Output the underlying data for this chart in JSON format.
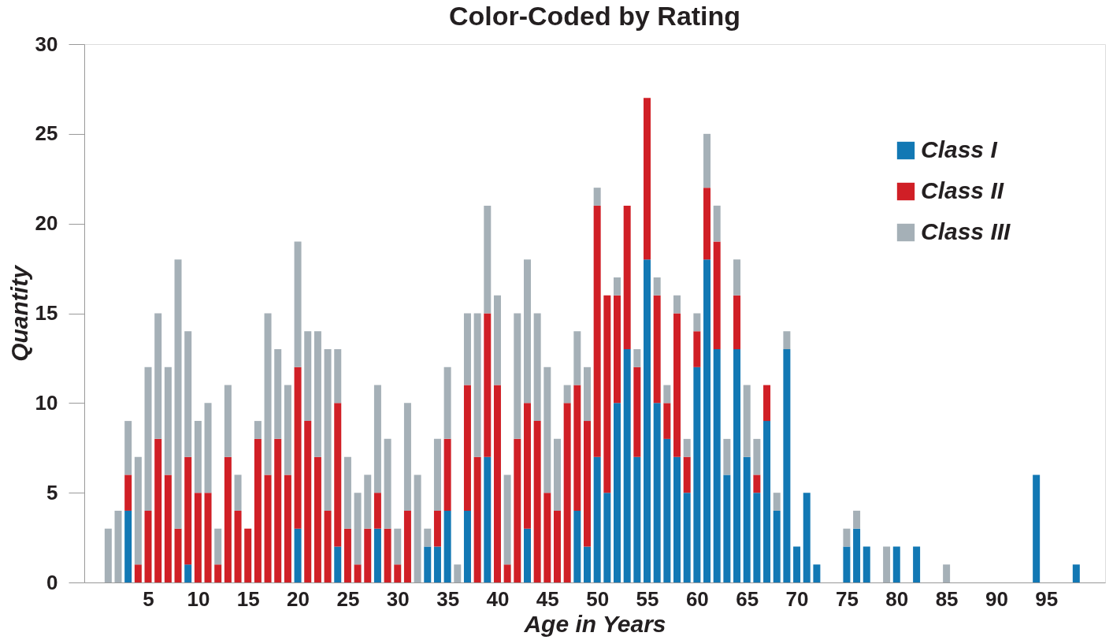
{
  "chart_data": {
    "type": "bar",
    "title": "Color-Coded by Rating",
    "xlabel": "Age in Years",
    "ylabel": "Quantity",
    "stacked": true,
    "x": [
      1,
      2,
      3,
      4,
      5,
      6,
      7,
      8,
      9,
      10,
      11,
      12,
      13,
      14,
      15,
      16,
      17,
      18,
      19,
      20,
      21,
      22,
      23,
      24,
      25,
      26,
      27,
      28,
      29,
      30,
      31,
      32,
      33,
      34,
      35,
      36,
      37,
      38,
      39,
      40,
      41,
      42,
      43,
      44,
      45,
      46,
      47,
      48,
      49,
      50,
      51,
      52,
      53,
      54,
      55,
      56,
      57,
      58,
      59,
      60,
      61,
      62,
      63,
      64,
      65,
      66,
      67,
      68,
      69,
      70,
      71,
      72,
      73,
      74,
      75,
      76,
      77,
      78,
      79,
      80,
      81,
      82,
      83,
      84,
      85,
      86,
      87,
      88,
      89,
      90,
      91,
      92,
      93,
      94,
      95,
      96,
      97,
      98
    ],
    "series": [
      {
        "name": "Class I",
        "color": "#1278b4",
        "values": [
          0,
          0,
          4,
          0,
          0,
          0,
          0,
          0,
          1,
          0,
          0,
          0,
          0,
          0,
          0,
          0,
          0,
          0,
          0,
          3,
          0,
          0,
          0,
          2,
          0,
          0,
          0,
          3,
          0,
          0,
          0,
          0,
          2,
          2,
          4,
          0,
          4,
          0,
          7,
          0,
          0,
          0,
          3,
          0,
          0,
          0,
          0,
          4,
          2,
          7,
          5,
          10,
          13,
          7,
          18,
          10,
          8,
          7,
          5,
          12,
          18,
          13,
          6,
          13,
          7,
          5,
          9,
          4,
          13,
          2,
          5,
          1,
          0,
          0,
          2,
          3,
          2,
          0,
          0,
          2,
          0,
          2,
          0,
          0,
          0,
          0,
          0,
          0,
          0,
          0,
          0,
          0,
          0,
          6,
          0,
          0,
          0,
          1
        ]
      },
      {
        "name": "Class II",
        "color": "#d01f26",
        "values": [
          0,
          0,
          2,
          1,
          4,
          8,
          6,
          3,
          6,
          5,
          5,
          1,
          7,
          4,
          3,
          8,
          6,
          8,
          6,
          9,
          9,
          7,
          4,
          8,
          3,
          1,
          3,
          2,
          3,
          1,
          4,
          0,
          0,
          2,
          4,
          0,
          7,
          7,
          8,
          11,
          1,
          8,
          7,
          9,
          5,
          4,
          10,
          7,
          7,
          14,
          11,
          6,
          8,
          5,
          9,
          6,
          2,
          8,
          2,
          2,
          4,
          6,
          0,
          3,
          0,
          1,
          2,
          0,
          0,
          0,
          0,
          0,
          0,
          0,
          0,
          0,
          0,
          0,
          0,
          0,
          0,
          0,
          0,
          0,
          0,
          0,
          0,
          0,
          0,
          0,
          0,
          0,
          0,
          0,
          0,
          0,
          0,
          0
        ]
      },
      {
        "name": "Class III",
        "color": "#a5b0b7",
        "values": [
          3,
          4,
          3,
          6,
          8,
          7,
          6,
          15,
          7,
          4,
          5,
          2,
          4,
          2,
          0,
          1,
          9,
          5,
          5,
          7,
          5,
          7,
          9,
          3,
          4,
          4,
          3,
          6,
          5,
          2,
          6,
          6,
          1,
          4,
          4,
          1,
          4,
          8,
          6,
          5,
          5,
          7,
          8,
          6,
          7,
          4,
          1,
          3,
          3,
          1,
          0,
          1,
          0,
          1,
          0,
          1,
          1,
          1,
          1,
          1,
          3,
          2,
          2,
          2,
          4,
          2,
          0,
          1,
          1,
          0,
          0,
          0,
          0,
          0,
          1,
          1,
          0,
          0,
          2,
          0,
          0,
          0,
          0,
          0,
          1,
          0,
          0,
          0,
          0,
          0,
          0,
          0,
          0,
          0,
          0,
          0,
          0,
          0
        ]
      }
    ],
    "xlim": [
      -1,
      100.5
    ],
    "xticks": [
      5,
      10,
      15,
      20,
      25,
      30,
      35,
      40,
      45,
      50,
      55,
      60,
      65,
      70,
      75,
      80,
      85,
      90,
      95
    ],
    "ylim": [
      0,
      30
    ],
    "yticks": [
      0,
      5,
      10,
      15,
      20,
      25,
      30
    ],
    "grid": false,
    "legend": "top right"
  }
}
